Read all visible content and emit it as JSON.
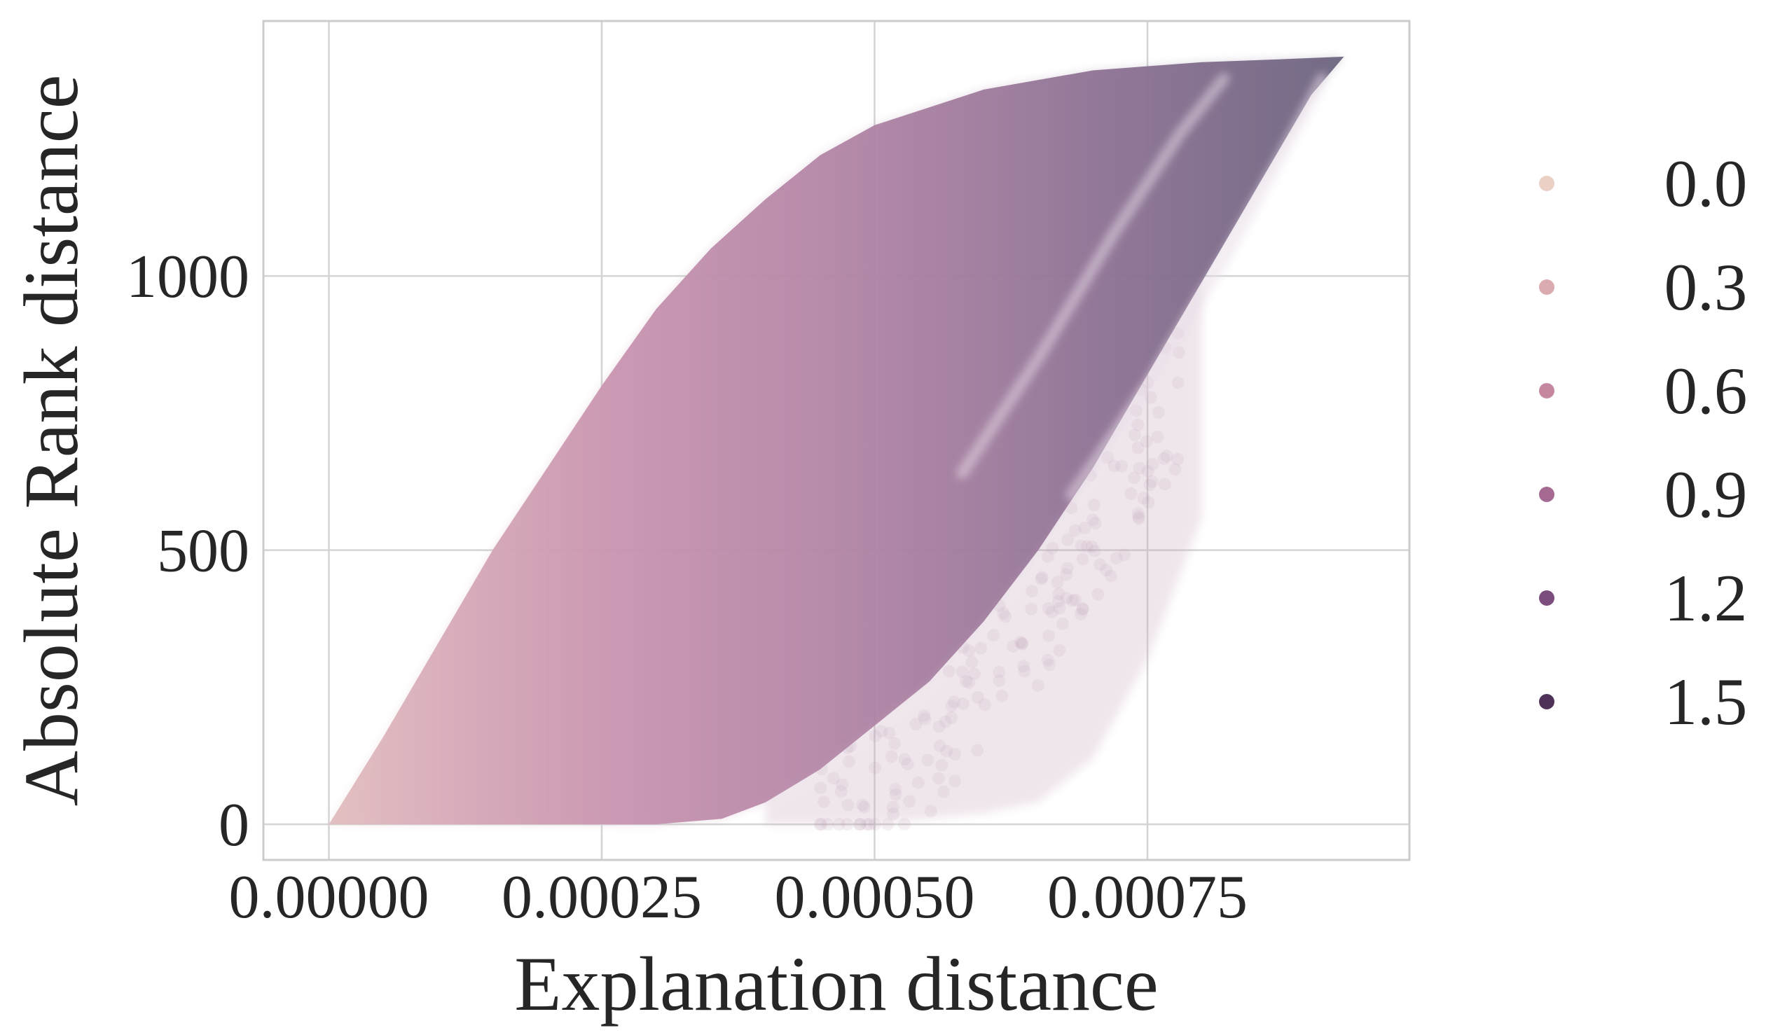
{
  "chart_data": {
    "type": "scatter",
    "xlabel": "Explanation distance",
    "ylabel": "Absolute Rank distance",
    "xlim": [
      -6e-05,
      0.00099
    ],
    "ylim": [
      -65,
      1465
    ],
    "x_ticks": [
      0,
      0.00025,
      0.0005,
      0.00075
    ],
    "x_tick_labels": [
      "0.00000",
      "0.00025",
      "0.00050",
      "0.00075"
    ],
    "y_ticks": [
      0,
      500,
      1000
    ],
    "y_tick_labels": [
      "0",
      "500",
      "1000"
    ],
    "grid": true,
    "legend": {
      "placement": "right, outside plot",
      "title": "",
      "entries": [
        {
          "label": "0.0",
          "color": "#ebd0c6"
        },
        {
          "label": "0.3",
          "color": "#dbabb0"
        },
        {
          "label": "0.6",
          "color": "#c587a0"
        },
        {
          "label": "0.9",
          "color": "#a56992"
        },
        {
          "label": "1.2",
          "color": "#7b4d7c"
        },
        {
          "label": "1.5",
          "color": "#4e3258"
        }
      ]
    },
    "point_cloud": {
      "hue_range": [
        0.0,
        1.5
      ],
      "alpha": 0.06,
      "envelope_upper": [
        {
          "x": 0.0,
          "y": 0
        },
        {
          "x": 5e-05,
          "y": 160
        },
        {
          "x": 0.0001,
          "y": 330
        },
        {
          "x": 0.00015,
          "y": 500
        },
        {
          "x": 0.0002,
          "y": 650
        },
        {
          "x": 0.00025,
          "y": 800
        },
        {
          "x": 0.0003,
          "y": 940
        },
        {
          "x": 0.00035,
          "y": 1050
        },
        {
          "x": 0.0004,
          "y": 1140
        },
        {
          "x": 0.00045,
          "y": 1220
        },
        {
          "x": 0.0005,
          "y": 1275
        },
        {
          "x": 0.0006,
          "y": 1340
        },
        {
          "x": 0.0007,
          "y": 1375
        },
        {
          "x": 0.0008,
          "y": 1390
        },
        {
          "x": 0.00087,
          "y": 1395
        },
        {
          "x": 0.00093,
          "y": 1400
        }
      ],
      "envelope_lower_dense": [
        {
          "x": 0.0,
          "y": 0
        },
        {
          "x": 0.0003,
          "y": 0
        },
        {
          "x": 0.00036,
          "y": 10
        },
        {
          "x": 0.0004,
          "y": 40
        },
        {
          "x": 0.00045,
          "y": 100
        },
        {
          "x": 0.0005,
          "y": 180
        },
        {
          "x": 0.00055,
          "y": 260
        },
        {
          "x": 0.0006,
          "y": 370
        },
        {
          "x": 0.00065,
          "y": 500
        },
        {
          "x": 0.0007,
          "y": 650
        },
        {
          "x": 0.00075,
          "y": 820
        },
        {
          "x": 0.0008,
          "y": 990
        },
        {
          "x": 0.00085,
          "y": 1160
        },
        {
          "x": 0.0009,
          "y": 1330
        },
        {
          "x": 0.00093,
          "y": 1400
        }
      ],
      "envelope_lower_sparse": [
        {
          "x": 0.0004,
          "y": 0
        },
        {
          "x": 0.0005,
          "y": 0
        },
        {
          "x": 0.0006,
          "y": 20
        },
        {
          "x": 0.00065,
          "y": 40
        },
        {
          "x": 0.0007,
          "y": 120
        },
        {
          "x": 0.00075,
          "y": 300
        },
        {
          "x": 0.0008,
          "y": 560
        }
      ]
    }
  }
}
